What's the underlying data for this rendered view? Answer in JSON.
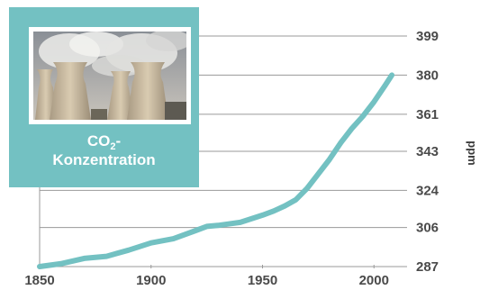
{
  "chart_data": {
    "type": "line",
    "title": "",
    "xlabel": "",
    "ylabel": "ppm",
    "xlim": [
      1850,
      2010
    ],
    "ylim": [
      287,
      399
    ],
    "x_ticks": [
      1850,
      1900,
      1950,
      2000
    ],
    "y_ticks": [
      287,
      306,
      324,
      343,
      361,
      380,
      399
    ],
    "grid": "horizontal",
    "y_axis_side": "right",
    "series": [
      {
        "color": "#73c1c2",
        "x": [
          1850,
          1860,
          1870,
          1880,
          1890,
          1900,
          1910,
          1920,
          1925,
          1930,
          1940,
          1950,
          1955,
          1960,
          1965,
          1970,
          1975,
          1980,
          1985,
          1990,
          1995,
          2000,
          2005,
          2008
        ],
        "y": [
          287,
          288.5,
          291,
          292,
          295,
          298.5,
          300.5,
          304.5,
          306.5,
          307,
          308.5,
          312,
          314,
          316.5,
          319.5,
          325,
          332,
          339,
          347,
          354,
          360,
          367,
          375,
          380
        ]
      }
    ]
  },
  "inset": {
    "title_prefix": "CO",
    "title_subscript": "2",
    "title_suffix": "-",
    "title_line2": "Konzentration"
  }
}
